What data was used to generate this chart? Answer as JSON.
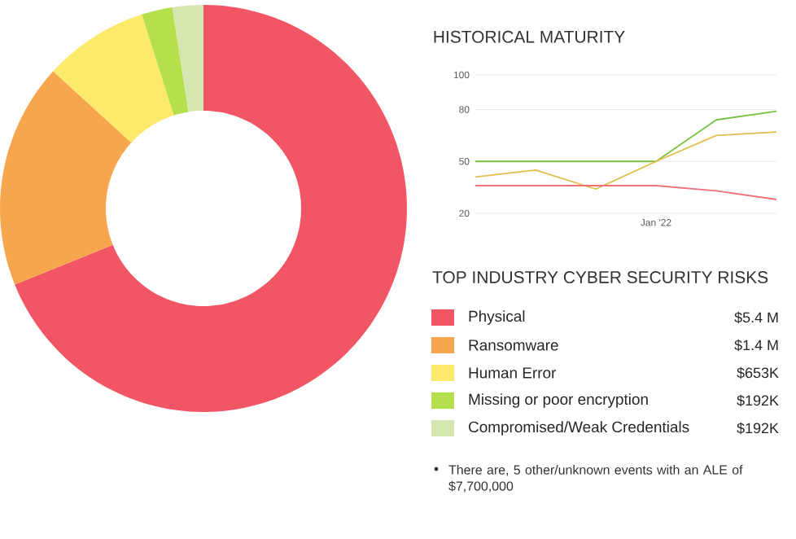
{
  "chart_data": [
    {
      "type": "donut",
      "title": "TOP INDUSTRY CYBER SECURITY RISKS",
      "categories": [
        "Physical",
        "Ransomware",
        "Human Error",
        "Missing or poor encryption",
        "Compromised/Weak Credentials"
      ],
      "values": [
        5400000,
        1400000,
        653000,
        192000,
        192000
      ],
      "value_labels": [
        "$5.4 M",
        "$1.4 M",
        "$653K",
        "$192K",
        "$192K"
      ],
      "colors": [
        "#f25563",
        "#f7a64d",
        "#fde96a",
        "#b5e04b",
        "#d6e6b0"
      ],
      "legend": "right",
      "annotations": [
        "There are, 5 other/unknown events with an ALE of $7,700,000"
      ]
    },
    {
      "type": "line",
      "title": "HISTORICAL MATURITY",
      "categories": [
        null,
        null,
        null,
        "Jan '22",
        null,
        null
      ],
      "series": [
        {
          "color": "#7cc242",
          "values": [
            50,
            50,
            50,
            50,
            74,
            79
          ]
        },
        {
          "color": "#e0c04a",
          "values": [
            41,
            45,
            34,
            50,
            65,
            67
          ]
        },
        {
          "color": "#f0707a",
          "values": [
            36,
            36,
            36,
            36,
            33,
            28
          ]
        }
      ],
      "ylim": [
        20,
        100
      ],
      "yticks": [
        20,
        50,
        80,
        100
      ],
      "grid": "y",
      "marker": "none",
      "line_style": "solid"
    }
  ]
}
